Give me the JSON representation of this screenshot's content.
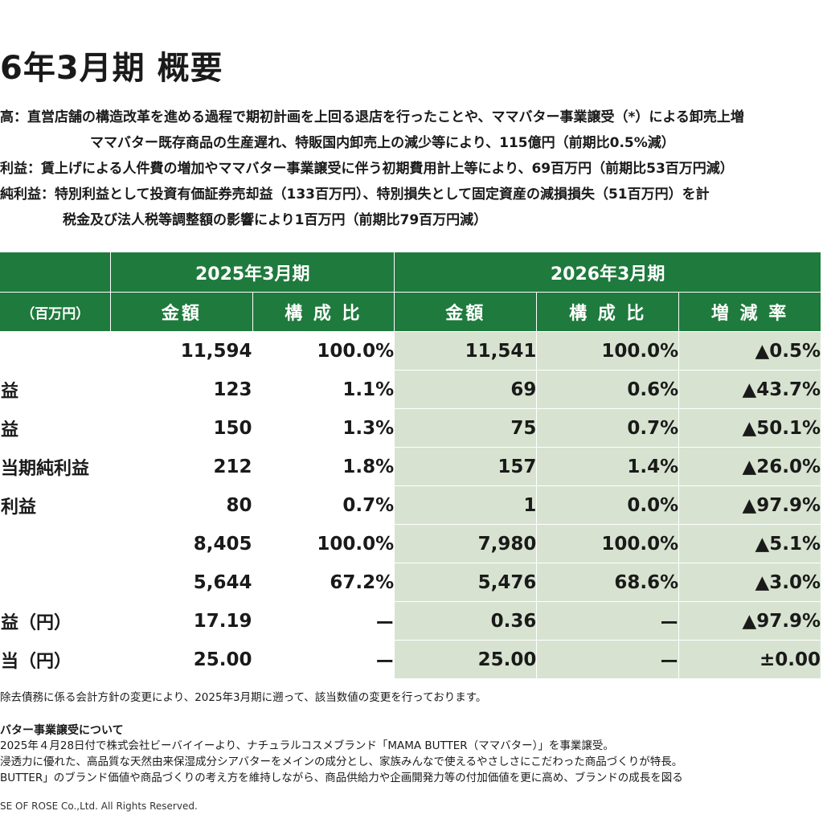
{
  "page_title": "6年3月期 概要",
  "summary": [
    "高：直営店舗の構造改革を進める過程で期初計画を上回る退店を行ったことや、ママバター事業譲受（*）による卸売上増",
    "ママバター既存商品の生産遅れ、特販国内卸売上の減少等により、115億円（前期比0.5%減）",
    "利益：賃上げによる人件費の増加やママバター事業譲受に伴う初期費用計上等により、69百万円（前期比53百万円減）",
    "純利益：特別利益として投資有価証券売却益（133百万円）、特別損失として固定資産の減損損失（51百万円）を計",
    "税金及び法人税等調整額の影響により1百万円（前期比79百万円減）"
  ],
  "table": {
    "unit": "（百万円）",
    "period_2025": "2025年3月期",
    "period_2026": "2026年3月期",
    "col_amount": "金額",
    "col_ratio": "構 成 比",
    "col_change": "増 減 率",
    "rows": [
      {
        "label": "",
        "a25": "11,594",
        "r25": "100.0%",
        "a26": "11,541",
        "r26": "100.0%",
        "chg": "▲0.5%"
      },
      {
        "label": "益",
        "a25": "123",
        "r25": "1.1%",
        "a26": "69",
        "r26": "0.6%",
        "chg": "▲43.7%"
      },
      {
        "label": "益",
        "a25": "150",
        "r25": "1.3%",
        "a26": "75",
        "r26": "0.7%",
        "chg": "▲50.1%"
      },
      {
        "label": "当期純利益",
        "a25": "212",
        "r25": "1.8%",
        "a26": "157",
        "r26": "1.4%",
        "chg": "▲26.0%"
      },
      {
        "label": "利益",
        "a25": "80",
        "r25": "0.7%",
        "a26": "1",
        "r26": "0.0%",
        "chg": "▲97.9%"
      },
      {
        "label": "",
        "a25": "8,405",
        "r25": "100.0%",
        "a26": "7,980",
        "r26": "100.0%",
        "chg": "▲5.1%"
      },
      {
        "label": "",
        "a25": "5,644",
        "r25": "67.2%",
        "a26": "5,476",
        "r26": "68.6%",
        "chg": "▲3.0%"
      },
      {
        "label": "益（円）",
        "a25": "17.19",
        "r25": "ー",
        "a26": "0.36",
        "r26": "ー",
        "chg": "▲97.9%"
      },
      {
        "label": "当（円）",
        "a25": "25.00",
        "r25": "ー",
        "a26": "25.00",
        "r26": "ー",
        "chg": "±0.00"
      }
    ]
  },
  "note_restate": "除去債務に係る会計方針の変更により、2025年3月期に遡って、該当数値の変更を行っております。",
  "note_heading": "バター事業譲受について",
  "notes": [
    "2025年４月28日付で株式会社ビーバイイーより、ナチュラルコスメブランド「MAMA BUTTER（ママバター）」を事業譲受。",
    "浸透力に優れた、高品質な天然由来保湿成分シアバターをメインの成分とし、家族みんなで使えるやさしさにこだわった商品づくりが特長。",
    "BUTTER」のブランド価値や商品づくりの考え方を維持しながら、商品供給力や企画開発力等の付加価値を更に高め、ブランドの成長を図る"
  ],
  "footer": "SE OF ROSE Co.,Ltd. All Rights Reserved.",
  "colors": {
    "header_green": "#1f7a3d",
    "highlight_green": "#d7e3d0"
  }
}
